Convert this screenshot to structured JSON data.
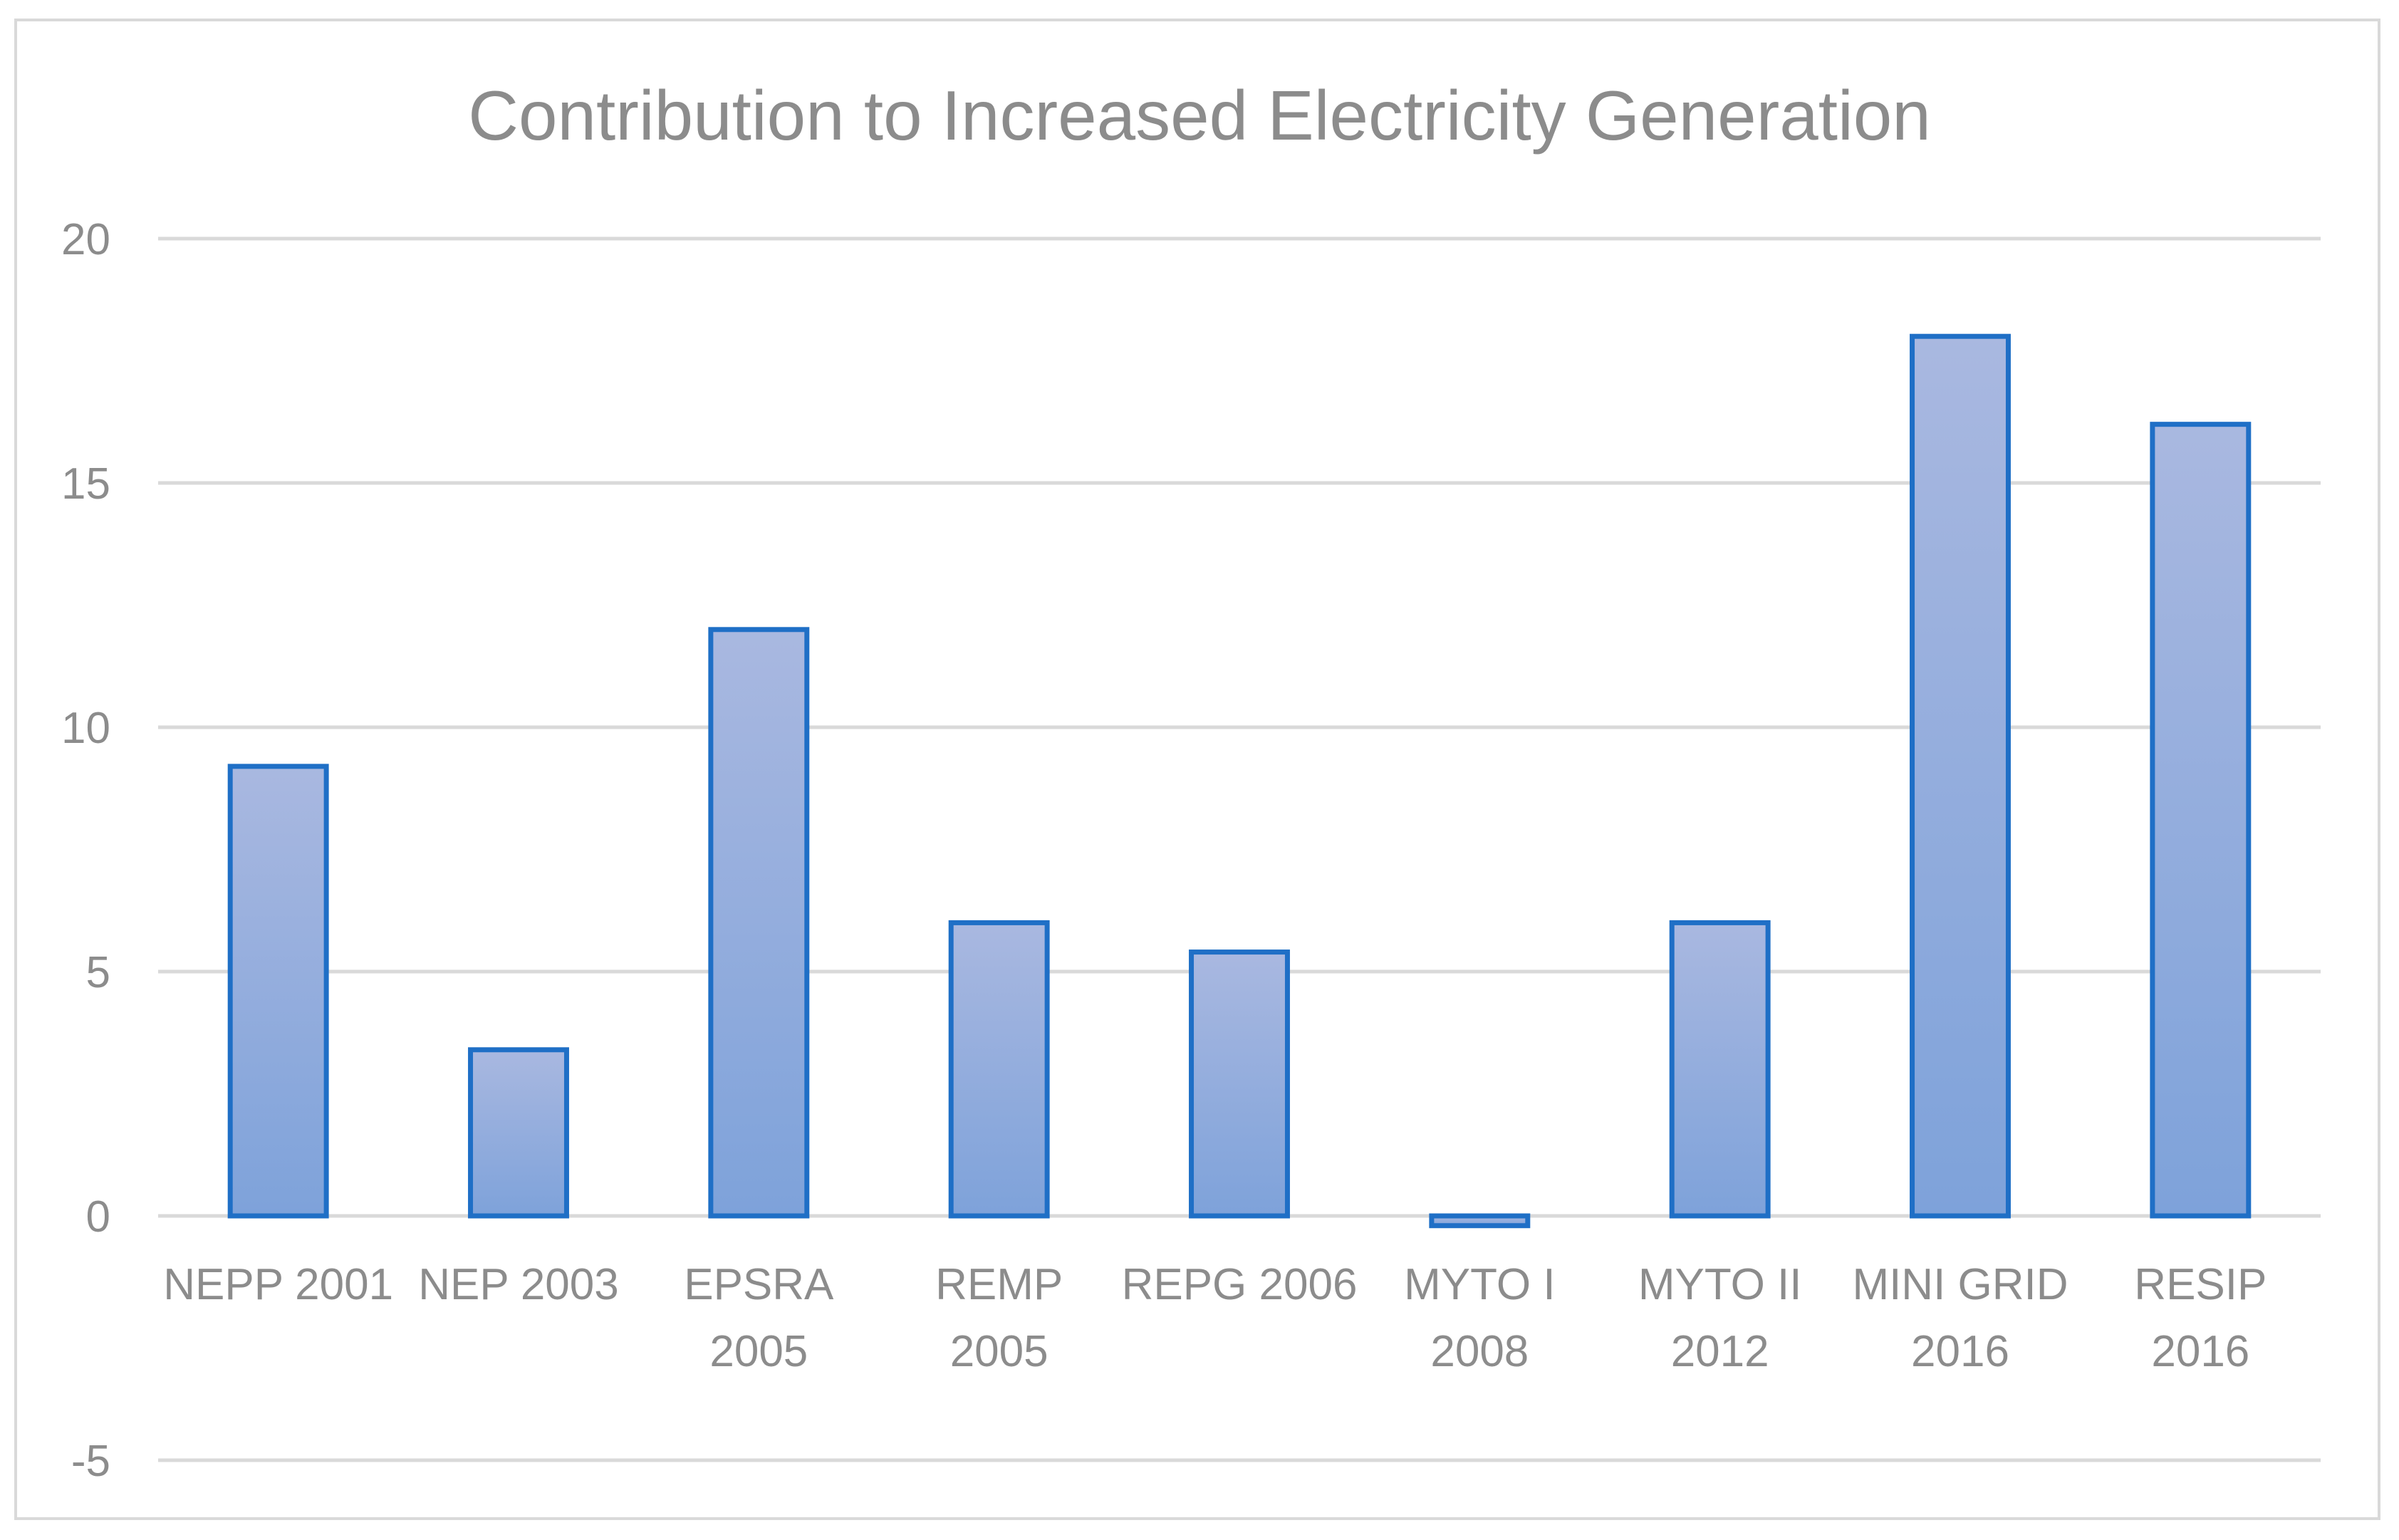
{
  "chart_data": {
    "type": "bar",
    "title": "Contribution to Increased Electricity Generation",
    "xlabel": "",
    "ylabel": "",
    "ylim": [
      -5,
      20
    ],
    "yticks": [
      -5,
      0,
      5,
      10,
      15,
      20
    ],
    "grid": true,
    "legend": "none",
    "categories": [
      [
        "NEPP 2001"
      ],
      [
        "NEP 2003"
      ],
      [
        "EPSRA",
        "2005"
      ],
      [
        "REMP",
        "2005"
      ],
      [
        "REPG 2006"
      ],
      [
        "MYTO I",
        "2008"
      ],
      [
        "MYTO II",
        "2012"
      ],
      [
        "MINI GRID",
        "2016"
      ],
      [
        "RESIP",
        "2016"
      ]
    ],
    "values": [
      9.2,
      3.4,
      12.0,
      6.0,
      5.4,
      -0.2,
      6.0,
      18.0,
      16.2
    ],
    "colors": {
      "bar_fill_top": "#a9b8e0",
      "bar_fill_bottom": "#7ea2da",
      "bar_stroke": "#1f6fc6"
    }
  }
}
